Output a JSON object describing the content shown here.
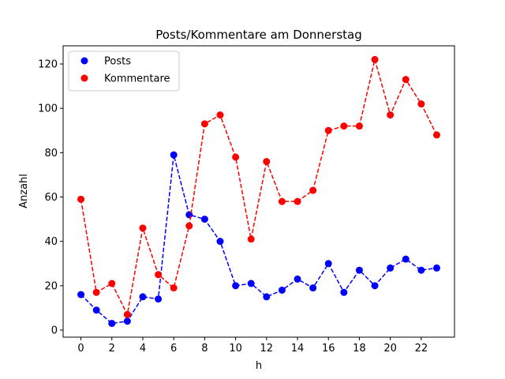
{
  "chart_data": {
    "type": "line",
    "title": "Posts/Kommentare am Donnerstag",
    "xlabel": "h",
    "ylabel": "Anzahl",
    "x": [
      0,
      1,
      2,
      3,
      4,
      5,
      6,
      7,
      8,
      9,
      10,
      11,
      12,
      13,
      14,
      15,
      16,
      17,
      18,
      19,
      20,
      21,
      22,
      23
    ],
    "xlim": [
      -1.15,
      24.15
    ],
    "ylim": [
      -3.2,
      128.2
    ],
    "xticks": [
      0,
      2,
      4,
      6,
      8,
      10,
      12,
      14,
      16,
      18,
      20,
      22
    ],
    "yticks": [
      0,
      20,
      40,
      60,
      80,
      100,
      120
    ],
    "grid": false,
    "legend_position": "top-left",
    "line_style": "dashed",
    "marker": "circle",
    "series": [
      {
        "name": "Posts",
        "color": "#0000ff",
        "values": [
          16,
          9,
          3,
          4,
          15,
          14,
          79,
          52,
          50,
          40,
          20,
          21,
          15,
          18,
          23,
          19,
          30,
          17,
          27,
          20,
          28,
          32,
          27,
          28
        ]
      },
      {
        "name": "Kommentare",
        "color": "#ff0000",
        "values": [
          59,
          17,
          21,
          7,
          46,
          25,
          19,
          47,
          93,
          97,
          78,
          41,
          76,
          58,
          58,
          63,
          90,
          92,
          92,
          122,
          97,
          113,
          102,
          88
        ]
      }
    ]
  }
}
